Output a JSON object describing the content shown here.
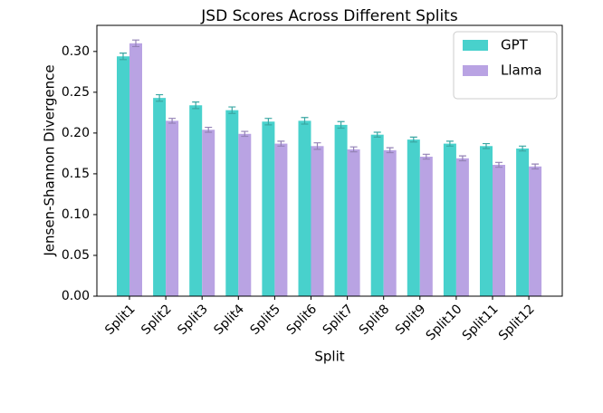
{
  "chart_data": {
    "type": "bar",
    "title": "JSD Scores Across Different Splits",
    "x_label": "Split",
    "y_label": "Jensen-Shannon Divergence",
    "categories": [
      "Split1",
      "Split2",
      "Split3",
      "Split4",
      "Split5",
      "Split6",
      "Split7",
      "Split8",
      "Split9",
      "Split10",
      "Split11",
      "Split12"
    ],
    "series": [
      {
        "name": "GPT",
        "color": "#48d1cc",
        "values": [
          0.294,
          0.243,
          0.234,
          0.228,
          0.214,
          0.215,
          0.21,
          0.198,
          0.192,
          0.187,
          0.184,
          0.181
        ],
        "errors": [
          0.004,
          0.004,
          0.004,
          0.004,
          0.004,
          0.004,
          0.004,
          0.003,
          0.003,
          0.003,
          0.003,
          0.003
        ]
      },
      {
        "name": "Llama",
        "color": "#b9a3e3",
        "values": [
          0.31,
          0.215,
          0.204,
          0.199,
          0.187,
          0.184,
          0.18,
          0.179,
          0.171,
          0.169,
          0.161,
          0.159
        ],
        "errors": [
          0.004,
          0.003,
          0.003,
          0.003,
          0.003,
          0.004,
          0.003,
          0.003,
          0.003,
          0.003,
          0.003,
          0.003
        ]
      }
    ],
    "ylim": [
      0,
      0.332
    ],
    "yticks": [
      {
        "value": 0,
        "label": "0.00"
      },
      {
        "value": 0.05,
        "label": "0.05"
      },
      {
        "value": 0.1,
        "label": "0.10"
      },
      {
        "value": 0.15,
        "label": "0.15"
      },
      {
        "value": 0.2,
        "label": "0.20"
      },
      {
        "value": 0.25,
        "label": "0.25"
      },
      {
        "value": 0.3,
        "label": "0.30"
      }
    ],
    "legend": "upper right"
  }
}
